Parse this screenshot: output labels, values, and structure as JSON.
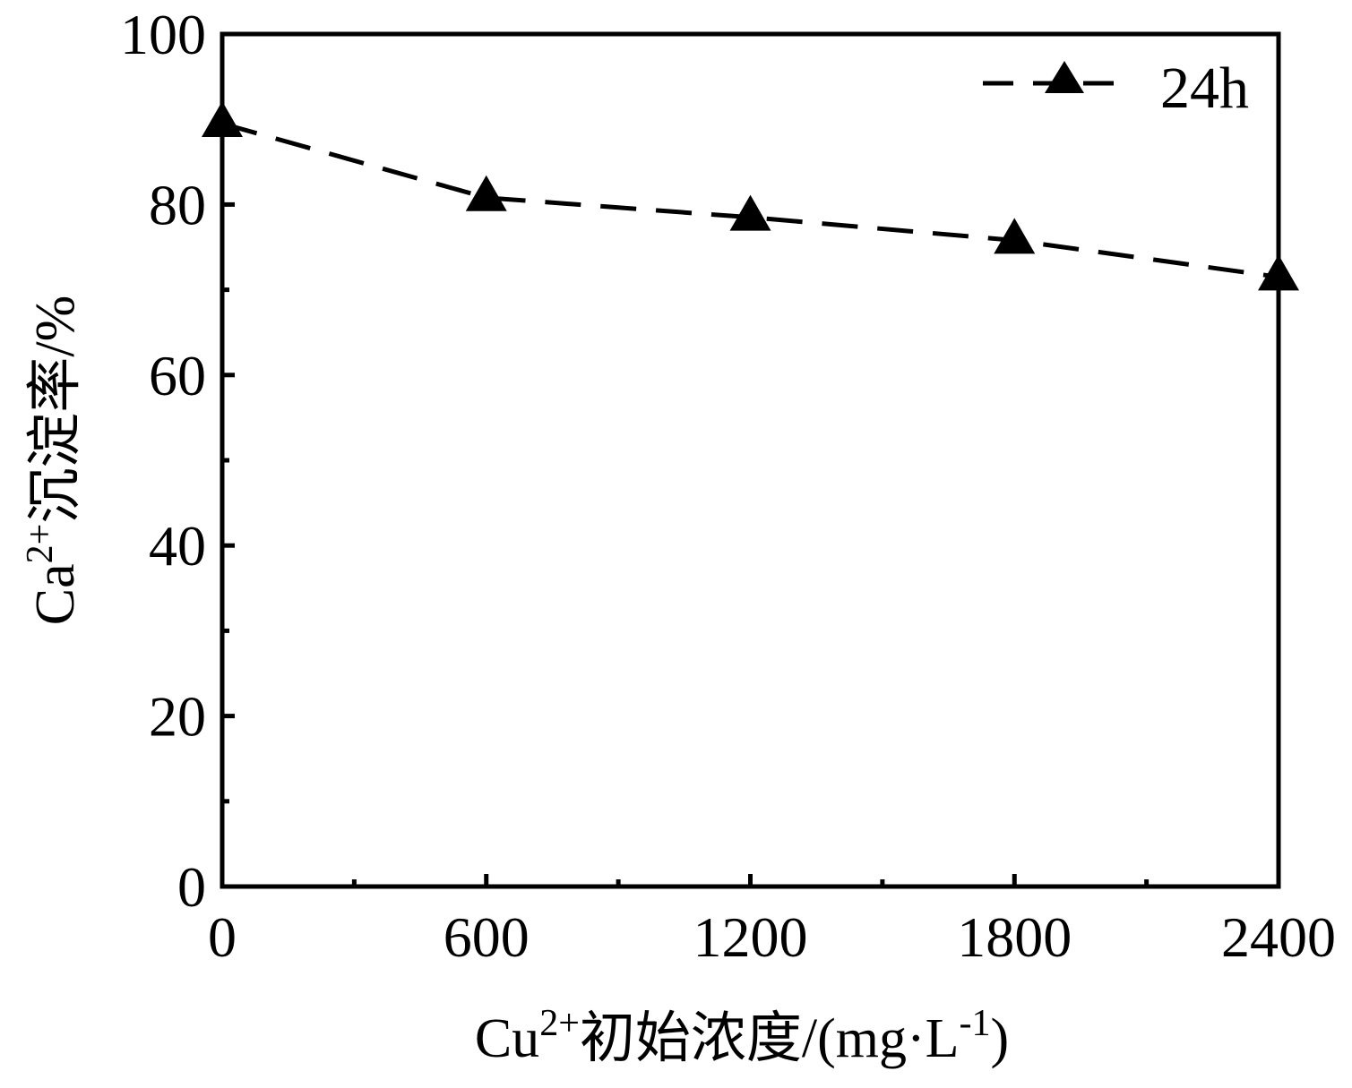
{
  "chart_data": {
    "type": "line",
    "x": [
      0,
      600,
      1200,
      1800,
      2400
    ],
    "xticks": [
      "0",
      "600",
      "1200",
      "1800",
      "2400"
    ],
    "yticks": [
      "0",
      "20",
      "40",
      "60",
      "80",
      "100"
    ],
    "xlim": [
      0,
      2400
    ],
    "ylim": [
      0,
      100
    ],
    "xlabel": {
      "main": "Cu",
      "sup": "2+",
      "rest": "初始浓度/(mg·L",
      "sup2": "-1",
      "end": ")"
    },
    "ylabel": {
      "main": "Ca",
      "sup": "2+",
      "rest": "沉淀率/%"
    },
    "grid": false,
    "legend_position": "top-right",
    "series": [
      {
        "name": "24h",
        "marker": "triangle",
        "line_style": "dashed",
        "color": "#000000",
        "values": [
          89.5,
          80.8,
          78.5,
          75.8,
          71.5
        ]
      }
    ]
  }
}
